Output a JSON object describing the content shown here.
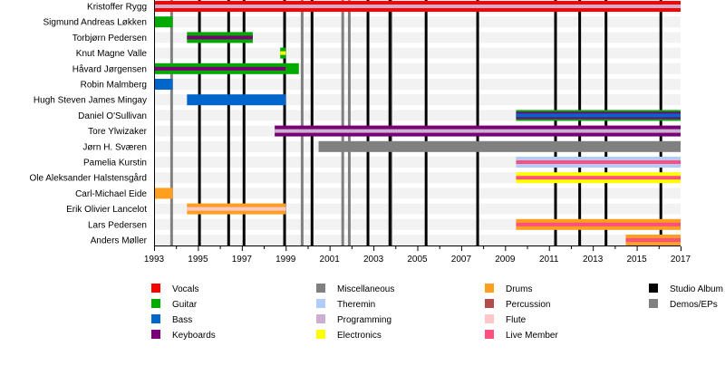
{
  "chart_data": {
    "type": "timeline",
    "xlim": [
      1993,
      2017
    ],
    "x_tick_labels": [
      "1993",
      "1995",
      "1997",
      "1999",
      "2001",
      "2003",
      "2005",
      "2007",
      "2009",
      "2011",
      "2013",
      "2015",
      "2017"
    ],
    "colors": {
      "Vocals": "#ff0000",
      "Guitar": "#00aa00",
      "Bass": "#0066cc",
      "Keyboards": "#7a0077",
      "Miscellaneous": "#808080",
      "Theremin": "#b0ccf8",
      "Programming": "#ccb0d0",
      "Electronics": "#ffff00",
      "Drums": "#ff9f20",
      "Percussion": "#b04c4c",
      "Flute": "#ffc8c8",
      "Live Member": "#ff4f7f",
      "Studio Album": "#000000",
      "Demos/EPs": "#808080"
    },
    "members": [
      {
        "name": "Kristoffer Rygg",
        "bars": [
          {
            "from": 1993,
            "to": 2017,
            "roles": [
              "Vocals",
              "Programming"
            ]
          }
        ]
      },
      {
        "name": "Sigmund Andreas Løkken",
        "bars": [
          {
            "from": 1993,
            "to": 1993.85,
            "roles": [
              "Guitar"
            ]
          }
        ]
      },
      {
        "name": "Torbjørn Pedersen",
        "bars": [
          {
            "from": 1994.5,
            "to": 1997.5,
            "roles": [
              "Guitar",
              "Keyboards"
            ]
          }
        ]
      },
      {
        "name": "Knut Magne Valle",
        "bars": [
          {
            "from": 1998.75,
            "to": 1999,
            "roles": [
              "Guitar",
              "Electronics"
            ]
          }
        ]
      },
      {
        "name": "Håvard Jørgensen",
        "bars": [
          {
            "from": 1993,
            "to": 1999.6,
            "roles": [
              "Guitar"
            ]
          },
          {
            "from": 1993,
            "to": 1999,
            "roles": [
              "Keyboards"
            ],
            "inner": true
          }
        ]
      },
      {
        "name": "Robin Malmberg",
        "bars": [
          {
            "from": 1993,
            "to": 1993.85,
            "roles": [
              "Bass"
            ]
          }
        ]
      },
      {
        "name": "Hugh Steven James Mingay",
        "bars": [
          {
            "from": 1994.5,
            "to": 1999,
            "roles": [
              "Bass"
            ]
          }
        ]
      },
      {
        "name": "Daniel O'Sullivan",
        "bars": [
          {
            "from": 2009.5,
            "to": 2017,
            "roles": [
              "Guitar",
              "Keyboards",
              "Bass"
            ]
          }
        ]
      },
      {
        "name": "Tore Ylwizaker",
        "bars": [
          {
            "from": 1998.5,
            "to": 2017,
            "roles": [
              "Keyboards",
              "Programming"
            ]
          }
        ]
      },
      {
        "name": "Jørn H. Sværen",
        "bars": [
          {
            "from": 2000.5,
            "to": 2017,
            "roles": [
              "Miscellaneous"
            ]
          }
        ]
      },
      {
        "name": "Pamelia Kurstin",
        "bars": [
          {
            "from": 2009.5,
            "to": 2017,
            "roles": [
              "Theremin",
              "Live Member"
            ]
          }
        ]
      },
      {
        "name": "Ole Aleksander Halstensgård",
        "bars": [
          {
            "from": 2009.5,
            "to": 2017,
            "roles": [
              "Electronics",
              "Live Member"
            ]
          }
        ]
      },
      {
        "name": "Carl-Michael Eide",
        "bars": [
          {
            "from": 1993,
            "to": 1993.85,
            "roles": [
              "Drums"
            ]
          }
        ]
      },
      {
        "name": "Erik Olivier Lancelot",
        "bars": [
          {
            "from": 1994.5,
            "to": 1999,
            "roles": [
              "Drums",
              "Flute"
            ]
          }
        ]
      },
      {
        "name": "Lars Pedersen",
        "bars": [
          {
            "from": 2009.5,
            "to": 2017,
            "roles": [
              "Drums",
              "Live Member"
            ]
          }
        ]
      },
      {
        "name": "Anders Møller",
        "bars": [
          {
            "from": 2014.5,
            "to": 2017,
            "roles": [
              "Drums",
              "Live Member"
            ]
          }
        ]
      }
    ],
    "studio_albums": [
      1995.07,
      1996.4,
      1997.1,
      1998.95,
      2000.2,
      2002.75,
      2003.75,
      2005.4,
      2007.75,
      2011.3,
      2012.4,
      2013.6,
      2016.1
    ],
    "demos_eps": [
      1993.8,
      1999.75,
      2001.6,
      2001.9,
      2003.8
    ],
    "legend": [
      [
        "Vocals",
        "Guitar",
        "Bass",
        "Keyboards"
      ],
      [
        "Miscellaneous",
        "Theremin",
        "Programming",
        "Electronics"
      ],
      [
        "Drums",
        "Percussion",
        "Flute",
        "Live Member"
      ],
      [
        "Studio Album",
        "Demos/EPs"
      ]
    ]
  }
}
